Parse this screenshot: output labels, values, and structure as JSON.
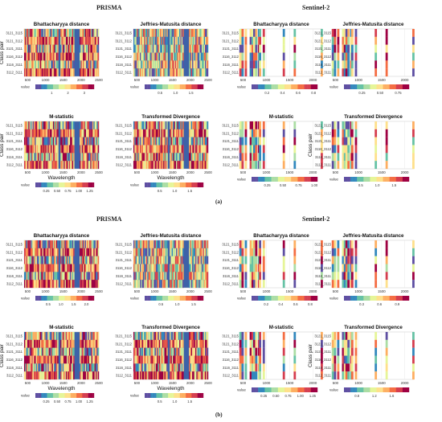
{
  "sections": [
    {
      "label": "(a)",
      "left_title": "PRISMA",
      "right_title": "Sentinel-2"
    },
    {
      "label": "(b)",
      "left_title": "PRISMA",
      "right_title": "Sentinel-2"
    }
  ],
  "chart_data": {
    "type": "heatmap",
    "class_pairs": [
      "3121_3115",
      "3121_3112",
      "3121_3111",
      "3116_3112",
      "3116_3111",
      "3112_3111"
    ],
    "ylabel": "Class pair",
    "xlabel": "Wavelength",
    "legend_label": "value",
    "colormap": [
      "#5e4fa2",
      "#3288bd",
      "#66c2a5",
      "#abdda4",
      "#e6f598",
      "#fee08b",
      "#fdae61",
      "#f46d43",
      "#d53e4f",
      "#9e0142"
    ],
    "panels": [
      {
        "section": "a",
        "sensor": "PRISMA",
        "title": "Bhattacharyya distance",
        "xlim": [
          400,
          2500
        ],
        "xticks": [
          500,
          1000,
          1500,
          2000,
          2500
        ],
        "legend_ticks": [
          "1",
          "2",
          "3"
        ],
        "legend_range": [
          0,
          3.6
        ],
        "show_ylabel": true,
        "show_xlabel": false
      },
      {
        "section": "a",
        "sensor": "PRISMA",
        "title": "Jeffries-Matusita distance",
        "xlim": [
          400,
          2500
        ],
        "xticks": [
          500,
          1000,
          1500,
          2000,
          2500
        ],
        "legend_ticks": [
          "0.5",
          "1.0",
          "1.5"
        ],
        "legend_range": [
          0,
          1.9
        ],
        "show_ylabel": false,
        "show_xlabel": false
      },
      {
        "section": "a",
        "sensor": "Sentinel-2",
        "title": "Bhattacharyya distance",
        "xlim": [
          440,
          2200
        ],
        "xticks": [
          500,
          1000,
          1500,
          2000
        ],
        "legend_ticks": [
          "0.2",
          "0.4",
          "0.6",
          "0.8"
        ],
        "legend_range": [
          0,
          0.85
        ],
        "show_ylabel": false,
        "show_xlabel": false
      },
      {
        "section": "a",
        "sensor": "Sentinel-2",
        "title": "Jeffries-Matusita distance",
        "xlim": [
          440,
          2200
        ],
        "xticks": [
          500,
          1000,
          1500,
          2000
        ],
        "legend_ticks": [
          "0.25",
          "0.50",
          "0.75"
        ],
        "legend_range": [
          0,
          0.9
        ],
        "show_ylabel": false,
        "show_xlabel": false
      },
      {
        "section": "a",
        "sensor": "PRISMA",
        "title": "M-statistic",
        "xlim": [
          400,
          2500
        ],
        "xticks": [
          500,
          1000,
          1500,
          2000,
          2500
        ],
        "legend_ticks": [
          "0.25",
          "0.50",
          "0.75",
          "1.00",
          "1.25"
        ],
        "legend_range": [
          0,
          1.35
        ],
        "show_ylabel": true,
        "show_xlabel": true
      },
      {
        "section": "a",
        "sensor": "PRISMA",
        "title": "Transformed Divergence",
        "xlim": [
          400,
          2500
        ],
        "xticks": [
          500,
          1000,
          1500,
          2000,
          2500
        ],
        "legend_ticks": [
          "0.5",
          "1.0",
          "1.5"
        ],
        "legend_range": [
          0,
          1.95
        ],
        "show_ylabel": false,
        "show_xlabel": true
      },
      {
        "section": "a",
        "sensor": "Sentinel-2",
        "title": "M-statistic",
        "xlim": [
          440,
          2200
        ],
        "xticks": [
          500,
          1000,
          1500,
          2000
        ],
        "legend_ticks": [
          "0.25",
          "0.50",
          "0.75",
          "1.00"
        ],
        "legend_range": [
          0,
          1.05
        ],
        "show_ylabel": false,
        "show_xlabel": false
      },
      {
        "section": "a",
        "sensor": "Sentinel-2",
        "title": "Transformed Divergence",
        "xlim": [
          440,
          2200
        ],
        "xticks": [
          500,
          1000,
          1500,
          2000
        ],
        "legend_ticks": [
          "0.5",
          "1.0",
          "1.5"
        ],
        "legend_range": [
          0,
          1.95
        ],
        "show_ylabel": true,
        "show_xlabel": false
      },
      {
        "section": "b",
        "sensor": "PRISMA",
        "title": "Bhattacharyya distance",
        "xlim": [
          400,
          2500
        ],
        "xticks": [
          500,
          1000,
          1500,
          2000,
          2500
        ],
        "legend_ticks": [
          "0.5",
          "1.0",
          "1.5",
          "2.0"
        ],
        "legend_range": [
          0,
          2.3
        ],
        "show_ylabel": false,
        "show_xlabel": false
      },
      {
        "section": "b",
        "sensor": "PRISMA",
        "title": "Jeffries-Matusita distance",
        "xlim": [
          400,
          2500
        ],
        "xticks": [
          500,
          1000,
          1500,
          2000,
          2500
        ],
        "legend_ticks": [
          "0.5",
          "1.0",
          "1.5"
        ],
        "legend_range": [
          0,
          1.8
        ],
        "show_ylabel": false,
        "show_xlabel": false
      },
      {
        "section": "b",
        "sensor": "Sentinel-2",
        "title": "Bhattacharyya distance",
        "xlim": [
          440,
          2200
        ],
        "xticks": [
          500,
          1000,
          1500,
          2000
        ],
        "legend_ticks": [
          "0.2",
          "0.4",
          "0.6",
          "0.8"
        ],
        "legend_range": [
          0,
          0.9
        ],
        "show_ylabel": false,
        "show_xlabel": false
      },
      {
        "section": "b",
        "sensor": "Sentinel-2",
        "title": "Jeffries-Matusita distance",
        "xlim": [
          440,
          2200
        ],
        "xticks": [
          500,
          1000,
          1500,
          2000
        ],
        "legend_ticks": [
          "0.3",
          "0.6",
          "0.9"
        ],
        "legend_range": [
          0,
          1.1
        ],
        "show_ylabel": false,
        "show_xlabel": false
      },
      {
        "section": "b",
        "sensor": "PRISMA",
        "title": "M-statistic",
        "xlim": [
          400,
          2500
        ],
        "xticks": [
          500,
          1000,
          1500,
          2000,
          2500
        ],
        "legend_ticks": [
          "0.25",
          "0.50",
          "0.75",
          "1.00",
          "1.25"
        ],
        "legend_range": [
          0,
          1.35
        ],
        "show_ylabel": true,
        "show_xlabel": true
      },
      {
        "section": "b",
        "sensor": "PRISMA",
        "title": "Transformed Divergence",
        "xlim": [
          400,
          2500
        ],
        "xticks": [
          500,
          1000,
          1500,
          2000,
          2500
        ],
        "legend_ticks": [
          "0.5",
          "1.0",
          "1.5"
        ],
        "legend_range": [
          0,
          1.95
        ],
        "show_ylabel": false,
        "show_xlabel": true
      },
      {
        "section": "b",
        "sensor": "Sentinel-2",
        "title": "M-statistic",
        "xlim": [
          440,
          2200
        ],
        "xticks": [
          500,
          1000,
          1500,
          2000
        ],
        "legend_ticks": [
          "0.25",
          "0.50",
          "0.75",
          "1.00",
          "1.25"
        ],
        "legend_range": [
          0,
          1.35
        ],
        "show_ylabel": false,
        "show_xlabel": false
      },
      {
        "section": "b",
        "sensor": "Sentinel-2",
        "title": "Transformed Divergence",
        "xlim": [
          440,
          2200
        ],
        "xticks": [
          500,
          1000,
          1500,
          2000
        ],
        "legend_ticks": [
          "0.8",
          "1.2",
          "1.6"
        ],
        "legend_range": [
          0.5,
          2.0
        ],
        "show_ylabel": true,
        "show_xlabel": false
      }
    ]
  }
}
